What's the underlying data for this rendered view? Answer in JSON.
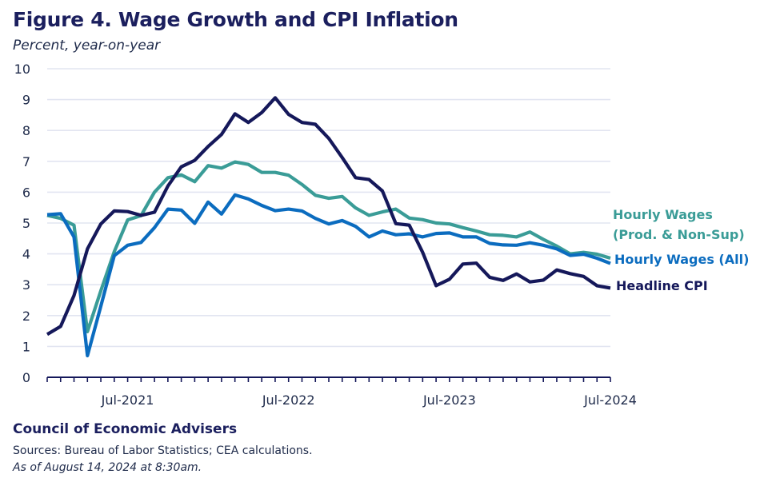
{
  "header": {
    "title": "Figure 4. Wage Growth and CPI Inflation",
    "subtitle": "Percent, year-on-year"
  },
  "footer": {
    "organization": "Council of Economic Advisers",
    "sources": "Sources: Bureau of Labor Statistics; CEA calculations.",
    "as_of": "As of August 14, 2024 at 8:30am."
  },
  "chart_data": {
    "type": "line",
    "title": "Figure 4. Wage Growth and CPI Inflation",
    "subtitle": "Percent, year-on-year",
    "xlabel": "",
    "ylabel": "Percent, year-on-year",
    "ylim": [
      0,
      10
    ],
    "yticks": [
      "0",
      "1",
      "2",
      "3",
      "4",
      "5",
      "6",
      "7",
      "8",
      "9",
      "10"
    ],
    "grid": true,
    "x_start": "Jan-2021",
    "x_end": "Jul-2024",
    "x_frequency": "monthly",
    "x_count": 43,
    "xtick_labels": [
      {
        "index": 6,
        "label": "Jul-2021"
      },
      {
        "index": 18,
        "label": "Jul-2022"
      },
      {
        "index": 30,
        "label": "Jul-2023"
      },
      {
        "index": 42,
        "label": "Jul-2024"
      }
    ],
    "legend_placement": "right, inline labels at line ends",
    "series": [
      {
        "name": "Hourly Wages (Prod. & Non-Sup)",
        "label_lines": [
          "Hourly Wages",
          "(Prod. & Non-Sup)"
        ],
        "color": "#3a9c97",
        "values": [
          5.25,
          5.15,
          4.93,
          1.48,
          2.8,
          4.07,
          5.1,
          5.24,
          6.0,
          6.47,
          6.56,
          6.34,
          6.86,
          6.78,
          6.98,
          6.9,
          6.64,
          6.64,
          6.55,
          6.25,
          5.9,
          5.8,
          5.86,
          5.49,
          5.25,
          5.36,
          5.45,
          5.16,
          5.11,
          5.0,
          4.97,
          4.85,
          4.74,
          4.62,
          4.6,
          4.55,
          4.71,
          4.47,
          4.25,
          4.0,
          4.05,
          3.99,
          3.86
        ]
      },
      {
        "name": "Hourly Wages (All)",
        "label_lines": [
          "Hourly Wages (All)"
        ],
        "color": "#0b6cbf",
        "values": [
          5.27,
          5.3,
          4.55,
          0.7,
          2.3,
          3.94,
          4.28,
          4.37,
          4.85,
          5.45,
          5.42,
          4.99,
          5.68,
          5.29,
          5.91,
          5.78,
          5.57,
          5.4,
          5.45,
          5.39,
          5.15,
          4.97,
          5.08,
          4.89,
          4.55,
          4.74,
          4.62,
          4.65,
          4.55,
          4.66,
          4.68,
          4.55,
          4.55,
          4.34,
          4.29,
          4.28,
          4.36,
          4.28,
          4.16,
          3.95,
          3.99,
          3.86,
          3.69
        ]
      },
      {
        "name": "Headline CPI",
        "label_lines": [
          "Headline CPI"
        ],
        "color": "#15185a",
        "values": [
          1.39,
          1.65,
          2.65,
          4.16,
          4.97,
          5.39,
          5.37,
          5.25,
          5.35,
          6.2,
          6.82,
          7.03,
          7.48,
          7.87,
          8.54,
          8.26,
          8.58,
          9.06,
          8.52,
          8.26,
          8.2,
          7.74,
          7.12,
          6.47,
          6.41,
          6.04,
          4.98,
          4.93,
          4.05,
          2.97,
          3.18,
          3.67,
          3.7,
          3.24,
          3.14,
          3.35,
          3.09,
          3.15,
          3.48,
          3.36,
          3.27,
          2.97,
          2.89
        ]
      }
    ]
  }
}
